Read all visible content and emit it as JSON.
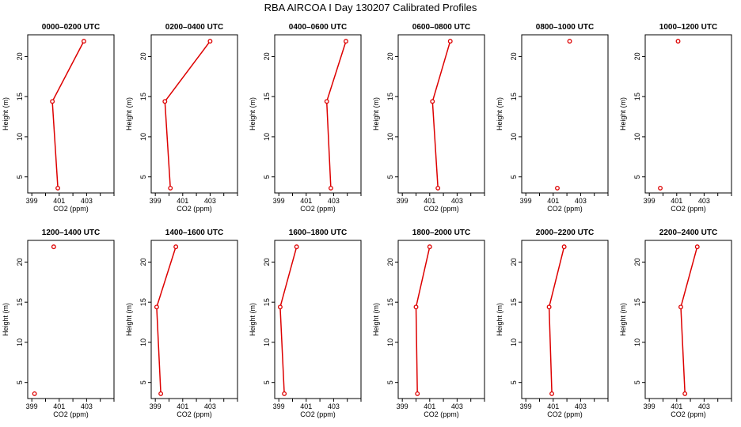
{
  "title": "RBA AIRCOA I  Day 130207  Calibrated Profiles",
  "colors": {
    "series": "#dd0000",
    "axis": "#000000"
  },
  "chart_data": {
    "type": "line",
    "xlabel": "CO2 (ppm)",
    "ylabel": "Height (m)",
    "xlim": [
      398.7,
      405.0
    ],
    "ylim": [
      3.0,
      22.7
    ],
    "xticks": [
      399,
      401,
      403
    ],
    "yticks": [
      5,
      10,
      15,
      20
    ],
    "grid": false,
    "panels": [
      {
        "title": "0000–0200 UTC",
        "points": [
          {
            "x": 400.9,
            "y": 3.6
          },
          {
            "x": 400.5,
            "y": 14.4
          },
          {
            "x": 402.8,
            "y": 21.9
          }
        ],
        "connected": true
      },
      {
        "title": "0200–0400 UTC",
        "points": [
          {
            "x": 400.1,
            "y": 3.6
          },
          {
            "x": 399.7,
            "y": 14.4
          },
          {
            "x": 403.0,
            "y": 21.9
          }
        ],
        "connected": true
      },
      {
        "title": "0400–0600 UTC",
        "points": [
          {
            "x": 402.8,
            "y": 3.6
          },
          {
            "x": 402.5,
            "y": 14.4
          },
          {
            "x": 403.9,
            "y": 21.9
          }
        ],
        "connected": true
      },
      {
        "title": "0600–0800 UTC",
        "points": [
          {
            "x": 401.6,
            "y": 3.6
          },
          {
            "x": 401.2,
            "y": 14.4
          },
          {
            "x": 402.5,
            "y": 21.9
          }
        ],
        "connected": true
      },
      {
        "title": "0800–1000 UTC",
        "points": [
          {
            "x": 401.3,
            "y": 3.6
          },
          {
            "x": 402.2,
            "y": 21.9
          }
        ],
        "connected": false
      },
      {
        "title": "1000–1200 UTC",
        "points": [
          {
            "x": 399.8,
            "y": 3.6
          },
          {
            "x": 401.1,
            "y": 21.9
          }
        ],
        "connected": false
      },
      {
        "title": "1200–1400 UTC",
        "points": [
          {
            "x": 399.2,
            "y": 3.6
          },
          {
            "x": 400.6,
            "y": 21.9
          }
        ],
        "connected": false
      },
      {
        "title": "1400–1600 UTC",
        "points": [
          {
            "x": 399.4,
            "y": 3.6
          },
          {
            "x": 399.1,
            "y": 14.4
          },
          {
            "x": 400.5,
            "y": 21.9
          }
        ],
        "connected": true
      },
      {
        "title": "1600–1800 UTC",
        "points": [
          {
            "x": 399.4,
            "y": 3.6
          },
          {
            "x": 399.1,
            "y": 14.4
          },
          {
            "x": 400.3,
            "y": 21.9
          }
        ],
        "connected": true
      },
      {
        "title": "1800–2000 UTC",
        "points": [
          {
            "x": 400.1,
            "y": 3.6
          },
          {
            "x": 400.0,
            "y": 14.4
          },
          {
            "x": 401.0,
            "y": 21.9
          }
        ],
        "connected": true
      },
      {
        "title": "2000–2200 UTC",
        "points": [
          {
            "x": 400.9,
            "y": 3.6
          },
          {
            "x": 400.7,
            "y": 14.4
          },
          {
            "x": 401.8,
            "y": 21.9
          }
        ],
        "connected": true
      },
      {
        "title": "2200–2400 UTC",
        "points": [
          {
            "x": 401.6,
            "y": 3.6
          },
          {
            "x": 401.3,
            "y": 14.4
          },
          {
            "x": 402.5,
            "y": 21.9
          }
        ],
        "connected": true
      }
    ]
  }
}
